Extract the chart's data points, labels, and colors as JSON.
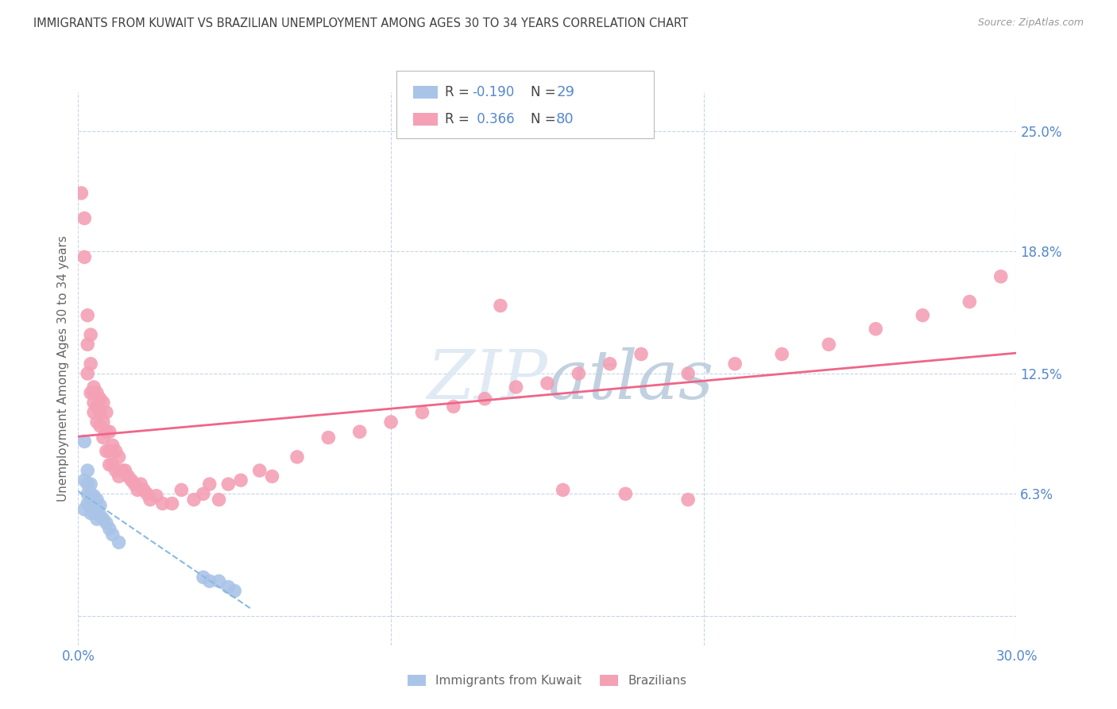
{
  "title": "IMMIGRANTS FROM KUWAIT VS BRAZILIAN UNEMPLOYMENT AMONG AGES 30 TO 34 YEARS CORRELATION CHART",
  "source": "Source: ZipAtlas.com",
  "ylabel": "Unemployment Among Ages 30 to 34 years",
  "xlim": [
    0.0,
    0.3
  ],
  "ylim": [
    -0.015,
    0.27
  ],
  "yticks": [
    0.0,
    0.063,
    0.125,
    0.188,
    0.25
  ],
  "ytick_labels": [
    "",
    "6.3%",
    "12.5%",
    "18.8%",
    "25.0%"
  ],
  "xticks": [
    0.0,
    0.1,
    0.2,
    0.3
  ],
  "xtick_labels": [
    "0.0%",
    "",
    "",
    "30.0%"
  ],
  "background_color": "#ffffff",
  "series1_color": "#aac4e8",
  "series2_color": "#f4a0b5",
  "trend1_color": "#88bbdd",
  "trend2_color": "#ee6688",
  "grid_color": "#c8d4e8",
  "title_color": "#404040",
  "label_color": "#5588cc",
  "watermark_color": "#dde8f4",
  "series1_R": -0.19,
  "series1_N": 29,
  "series2_R": 0.366,
  "series2_N": 80,
  "s1x": [
    0.002,
    0.002,
    0.002,
    0.003,
    0.003,
    0.003,
    0.003,
    0.004,
    0.004,
    0.004,
    0.004,
    0.005,
    0.005,
    0.005,
    0.006,
    0.006,
    0.006,
    0.007,
    0.007,
    0.008,
    0.009,
    0.01,
    0.011,
    0.013,
    0.04,
    0.042,
    0.045,
    0.048,
    0.05
  ],
  "s1y": [
    0.09,
    0.07,
    0.055,
    0.075,
    0.068,
    0.063,
    0.058,
    0.068,
    0.063,
    0.058,
    0.053,
    0.062,
    0.058,
    0.053,
    0.06,
    0.055,
    0.05,
    0.057,
    0.052,
    0.05,
    0.048,
    0.045,
    0.042,
    0.038,
    0.02,
    0.018,
    0.018,
    0.015,
    0.013
  ],
  "s2x": [
    0.001,
    0.002,
    0.002,
    0.003,
    0.003,
    0.003,
    0.004,
    0.004,
    0.004,
    0.005,
    0.005,
    0.005,
    0.005,
    0.006,
    0.006,
    0.006,
    0.007,
    0.007,
    0.007,
    0.008,
    0.008,
    0.008,
    0.009,
    0.009,
    0.009,
    0.01,
    0.01,
    0.01,
    0.011,
    0.011,
    0.012,
    0.012,
    0.013,
    0.013,
    0.014,
    0.015,
    0.016,
    0.017,
    0.018,
    0.019,
    0.02,
    0.021,
    0.022,
    0.023,
    0.025,
    0.027,
    0.03,
    0.033,
    0.037,
    0.04,
    0.042,
    0.045,
    0.048,
    0.052,
    0.058,
    0.062,
    0.07,
    0.08,
    0.09,
    0.1,
    0.11,
    0.12,
    0.13,
    0.14,
    0.15,
    0.16,
    0.17,
    0.18,
    0.195,
    0.21,
    0.225,
    0.24,
    0.255,
    0.27,
    0.285,
    0.295,
    0.195,
    0.175,
    0.155,
    0.135
  ],
  "s2y": [
    0.218,
    0.205,
    0.185,
    0.155,
    0.14,
    0.125,
    0.145,
    0.13,
    0.115,
    0.118,
    0.115,
    0.11,
    0.105,
    0.115,
    0.108,
    0.1,
    0.112,
    0.105,
    0.098,
    0.11,
    0.1,
    0.092,
    0.105,
    0.095,
    0.085,
    0.095,
    0.085,
    0.078,
    0.088,
    0.078,
    0.085,
    0.075,
    0.082,
    0.072,
    0.075,
    0.075,
    0.072,
    0.07,
    0.068,
    0.065,
    0.068,
    0.065,
    0.063,
    0.06,
    0.062,
    0.058,
    0.058,
    0.065,
    0.06,
    0.063,
    0.068,
    0.06,
    0.068,
    0.07,
    0.075,
    0.072,
    0.082,
    0.092,
    0.095,
    0.1,
    0.105,
    0.108,
    0.112,
    0.118,
    0.12,
    0.125,
    0.13,
    0.135,
    0.125,
    0.13,
    0.135,
    0.14,
    0.148,
    0.155,
    0.162,
    0.175,
    0.06,
    0.063,
    0.065,
    0.16
  ]
}
